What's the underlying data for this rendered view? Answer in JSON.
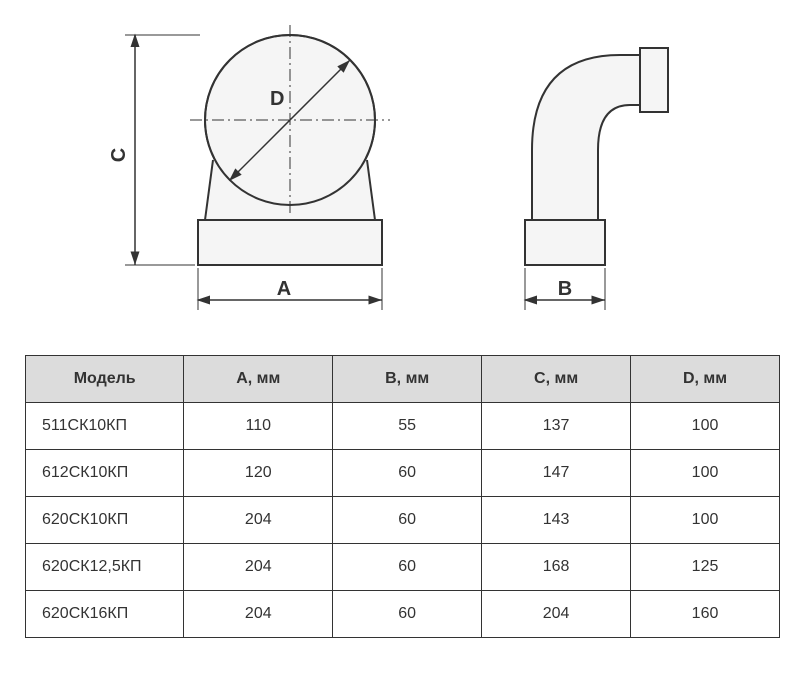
{
  "diagram": {
    "front_view": {
      "dim_A_label": "A",
      "dim_C_label": "C",
      "dim_D_label": "D"
    },
    "side_view": {
      "dim_B_label": "B"
    },
    "colors": {
      "line": "#333333",
      "fill": "#f5f5f5",
      "bg": "#ffffff",
      "arrow": "#333333"
    },
    "stroke_width": 2
  },
  "table": {
    "columns": [
      "Модель",
      "A, мм",
      "B, мм",
      "C, мм",
      "D, мм"
    ],
    "rows": [
      [
        "511СК10КП",
        "110",
        "55",
        "137",
        "100"
      ],
      [
        "612СК10КП",
        "120",
        "60",
        "147",
        "100"
      ],
      [
        "620СК10КП",
        "204",
        "60",
        "143",
        "100"
      ],
      [
        "620СК12,5КП",
        "204",
        "60",
        "168",
        "125"
      ],
      [
        "620СК16КП",
        "204",
        "60",
        "204",
        "160"
      ]
    ],
    "header_bg": "#dcdcdc",
    "border_color": "#333333",
    "text_color": "#333333",
    "font_size": 16
  }
}
